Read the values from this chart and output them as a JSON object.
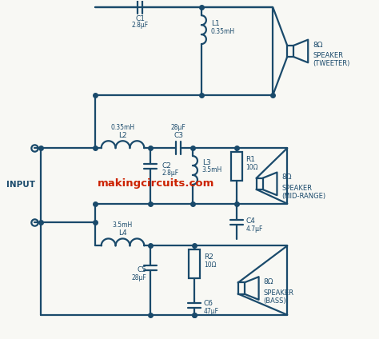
{
  "bg_color": "#f8f8f4",
  "circuit_color": "#1a4a6b",
  "watermark_color": "#cc2200",
  "line_width": 1.6,
  "watermark": "makingcircuits.com",
  "components": {
    "C1": "2.8μF",
    "L1": "0.35mH",
    "L2": "0.35mH",
    "C2": "2.8μF",
    "C3": "28μF",
    "L3": "3.5mH",
    "R1": "10Ω",
    "C4": "4.7μF",
    "L4": "3.5mH",
    "C5": "28μF",
    "R2": "10Ω",
    "C6": "47μF"
  },
  "spk_tweeter_ohm": "8Ω",
  "spk_tweeter_label": "SPEAKER\n(TWEETER)",
  "spk_mid_ohm": "8Ω",
  "spk_mid_label": "SPEAKER\n(MID-RANGE)",
  "spk_bass_ohm": "8Ω",
  "spk_bass_label": "SPEAKER\n(BASS)",
  "input_label": "INPUT"
}
